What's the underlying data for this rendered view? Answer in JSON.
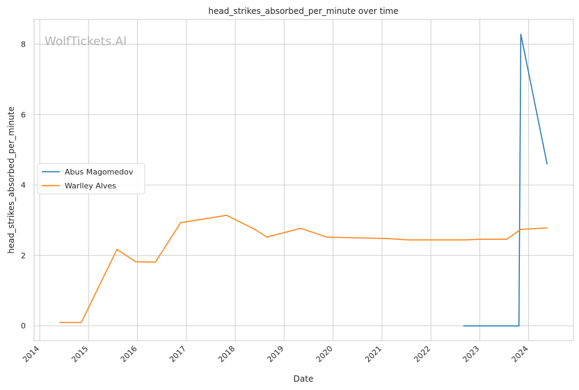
{
  "chart_data": {
    "type": "line",
    "title": "head_strikes_absorbed_per_minute over time",
    "xlabel": "Date",
    "ylabel": "head_strikes_absorbed_per_minute",
    "watermark": "WolfTickets.AI",
    "x_ticks": [
      "2014",
      "2015",
      "2016",
      "2017",
      "2018",
      "2019",
      "2020",
      "2021",
      "2022",
      "2023",
      "2024"
    ],
    "y_ticks": [
      0,
      2,
      4,
      6,
      8
    ],
    "xlim": [
      "2013-11-20",
      "2024-12-01"
    ],
    "ylim": [
      -0.42,
      8.7
    ],
    "grid": true,
    "legend_position": "center-left",
    "series": [
      {
        "name": "Abus Magomedov",
        "color": "#1f77b4",
        "points": [
          {
            "x": "2022-09-03",
            "y": 0.0
          },
          {
            "x": "2023-10-21",
            "y": 0.0
          },
          {
            "x": "2023-11-04",
            "y": 8.28
          },
          {
            "x": "2024-05-18",
            "y": 4.6
          }
        ]
      },
      {
        "name": "Warlley Alves",
        "color": "#ff7f0e",
        "points": [
          {
            "x": "2014-05-31",
            "y": 0.1
          },
          {
            "x": "2014-11-08",
            "y": 0.1
          },
          {
            "x": "2015-08-01",
            "y": 2.17
          },
          {
            "x": "2015-12-19",
            "y": 1.82
          },
          {
            "x": "2016-05-14",
            "y": 1.81
          },
          {
            "x": "2016-11-19",
            "y": 2.93
          },
          {
            "x": "2017-10-28",
            "y": 3.14
          },
          {
            "x": "2018-05-27",
            "y": 2.74
          },
          {
            "x": "2018-08-25",
            "y": 2.52
          },
          {
            "x": "2019-05-04",
            "y": 2.77
          },
          {
            "x": "2019-11-16",
            "y": 2.52
          },
          {
            "x": "2021-02-06",
            "y": 2.48
          },
          {
            "x": "2021-07-17",
            "y": 2.44
          },
          {
            "x": "2022-09-03",
            "y": 2.44
          },
          {
            "x": "2023-01-14",
            "y": 2.46
          },
          {
            "x": "2023-07-22",
            "y": 2.46
          },
          {
            "x": "2023-11-04",
            "y": 2.74
          },
          {
            "x": "2024-05-18",
            "y": 2.78
          }
        ]
      }
    ]
  }
}
